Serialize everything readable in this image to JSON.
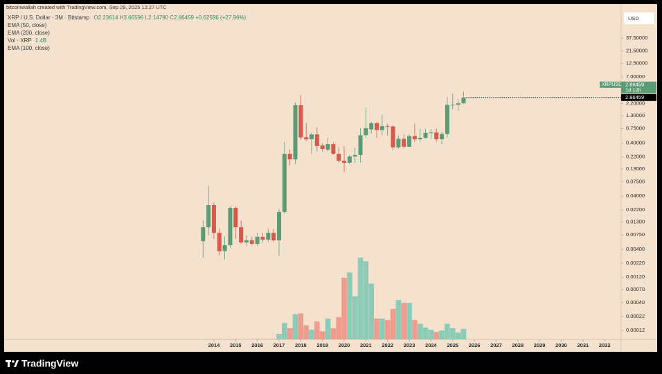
{
  "credit": "bitcoinwallah created with TradingView.com, Sep 29, 2025 12:27 UTC",
  "brand": "TradingView",
  "chart_data": {
    "type": "candlestick",
    "title": "XRP / U.S. Dollar · 3M · Bitstamp",
    "ohlc_labels": [
      "O",
      "H",
      "L",
      "C"
    ],
    "ohlc_values": [
      "2.23614",
      "3.66596",
      "2.14790",
      "2.86459"
    ],
    "change": "+0.62596 (+27.96%)",
    "indicators": [
      "EMA (50, close)",
      "EMA (200, close)",
      "Vol · XRP",
      "EMA (100, close)"
    ],
    "volume_label": "1.4B",
    "symbol": "XRPUSD",
    "countdown": "1d 12h",
    "currency": "USD",
    "log_scale": true,
    "up_color": "#5b9c76",
    "down_color": "#d45b4b",
    "volume_up_color": "#8dcbb9",
    "volume_down_color": "#ef9b8d",
    "x": [
      2013.5,
      2013.75,
      2014,
      2014.25,
      2014.5,
      2014.75,
      2015,
      2015.25,
      2015.5,
      2015.75,
      2016,
      2016.25,
      2016.5,
      2016.75,
      2017,
      2017.25,
      2017.5,
      2017.75,
      2018,
      2018.25,
      2018.5,
      2018.75,
      2019,
      2019.25,
      2019.5,
      2019.75,
      2020,
      2020.25,
      2020.5,
      2020.75,
      2021,
      2021.25,
      2021.5,
      2021.75,
      2022,
      2022.25,
      2022.5,
      2022.75,
      2023,
      2023.25,
      2023.5,
      2023.75,
      2024,
      2024.25,
      2024.5,
      2024.75,
      2025,
      2025.25,
      2025.5
    ],
    "open": [
      0.0057,
      0.0104,
      0.0273,
      0.0082,
      0.0037,
      0.0048,
      0.0242,
      0.0104,
      0.0054,
      0.0059,
      0.0051,
      0.0069,
      0.0061,
      0.0082,
      0.0059,
      0.0202,
      0.25,
      0.197,
      2.05,
      0.51,
      0.47,
      0.58,
      0.36,
      0.3,
      0.38,
      0.25,
      0.186,
      0.17,
      0.223,
      0.237,
      0.56,
      0.72,
      0.94,
      0.7,
      0.83,
      0.82,
      0.33,
      0.48,
      0.34,
      0.54,
      0.47,
      0.5,
      0.62,
      0.63,
      0.47,
      0.59,
      2.08,
      2.09,
      2.23614
    ],
    "high": [
      0.0141,
      0.063,
      0.031,
      0.0098,
      0.0069,
      0.0257,
      0.0257,
      0.0141,
      0.0073,
      0.0069,
      0.0082,
      0.0082,
      0.0098,
      0.0098,
      0.0228,
      0.42,
      0.3,
      2.31,
      3.21,
      0.95,
      0.63,
      0.78,
      0.4,
      0.5,
      0.41,
      0.34,
      0.35,
      0.24,
      0.33,
      0.76,
      1.87,
      1.0,
      1.0,
      1.35,
      0.92,
      0.85,
      0.56,
      0.58,
      0.58,
      0.93,
      0.74,
      0.74,
      0.74,
      0.74,
      0.64,
      2.9,
      3.4,
      2.65,
      3.66596
    ],
    "low": [
      0.0028,
      0.0073,
      0.0063,
      0.0031,
      0.0026,
      0.0043,
      0.0063,
      0.0051,
      0.0047,
      0.0047,
      0.0047,
      0.0054,
      0.0056,
      0.0054,
      0.003,
      0.019,
      0.15,
      0.16,
      0.457,
      0.43,
      0.25,
      0.28,
      0.28,
      0.28,
      0.24,
      0.17,
      0.115,
      0.16,
      0.17,
      0.17,
      0.5,
      0.6,
      0.5,
      0.55,
      0.55,
      0.29,
      0.31,
      0.32,
      0.34,
      0.42,
      0.42,
      0.47,
      0.48,
      0.42,
      0.38,
      0.5,
      1.7,
      1.6,
      2.1479
    ],
    "close": [
      0.0104,
      0.0273,
      0.0082,
      0.0037,
      0.0048,
      0.0242,
      0.0104,
      0.0054,
      0.0059,
      0.0051,
      0.0069,
      0.0061,
      0.0082,
      0.0059,
      0.0202,
      0.25,
      0.197,
      2.05,
      0.51,
      0.47,
      0.58,
      0.35,
      0.31,
      0.38,
      0.25,
      0.186,
      0.17,
      0.223,
      0.237,
      0.56,
      0.76,
      0.94,
      0.7,
      0.83,
      0.82,
      0.33,
      0.48,
      0.34,
      0.54,
      0.47,
      0.5,
      0.62,
      0.63,
      0.47,
      0.59,
      2.08,
      2.09,
      2.24,
      2.86459
    ],
    "volume": [
      0.02,
      0.05,
      0.06,
      0.05,
      0.04,
      0.05,
      0.06,
      0.04,
      0.04,
      0.05,
      0.06,
      0.05,
      0.06,
      0.08,
      0.75,
      2.2,
      1.5,
      3.4,
      3.5,
      1.9,
      1.3,
      2.4,
      1.1,
      2.8,
      1.5,
      3.0,
      8.3,
      9.0,
      5.8,
      11.0,
      10.5,
      7.5,
      2.8,
      2.8,
      2.6,
      4.1,
      5.3,
      4.9,
      4.9,
      2.6,
      2.1,
      1.6,
      1.3,
      1.0,
      1.2,
      2.1,
      1.5,
      0.9,
      1.4
    ],
    "xlim": [
      2004.4,
      2032.76
    ],
    "xticks": [
      2014,
      2015,
      2016,
      2017,
      2018,
      2019,
      2020,
      2021,
      2022,
      2023,
      2024,
      2025,
      2026,
      2027,
      2028,
      2029,
      2030,
      2031,
      2032
    ],
    "ylim": [
      8.13e-05,
      153.5
    ],
    "yticks": [
      {
        "value": 37.5,
        "label": "37.50000"
      },
      {
        "value": 21.5,
        "label": "21.50000"
      },
      {
        "value": 12.5,
        "label": "12.50000"
      },
      {
        "value": 7,
        "label": "7.00000"
      },
      {
        "value": 2.2,
        "label": "2.20000"
      },
      {
        "value": 1.3,
        "label": "1.30000"
      },
      {
        "value": 0.75,
        "label": "0.75000"
      },
      {
        "value": 0.4,
        "label": "0.40000"
      },
      {
        "value": 0.22,
        "label": "0.22000"
      },
      {
        "value": 0.13,
        "label": "0.13000"
      },
      {
        "value": 0.075,
        "label": "0.07500"
      },
      {
        "value": 0.04,
        "label": "0.04000"
      },
      {
        "value": 0.022,
        "label": "0.02200"
      },
      {
        "value": 0.013,
        "label": "0.01300"
      },
      {
        "value": 0.0075,
        "label": "0.00750"
      },
      {
        "value": 0.004,
        "label": "0.00400"
      },
      {
        "value": 0.0022,
        "label": "0.00220"
      },
      {
        "value": 0.0012,
        "label": "0.00120"
      },
      {
        "value": 0.0007,
        "label": "0.00070"
      },
      {
        "value": 0.0004,
        "label": "0.00040"
      },
      {
        "value": 0.00022,
        "label": "0.00022"
      },
      {
        "value": 0.00012,
        "label": "0.00012"
      }
    ]
  }
}
